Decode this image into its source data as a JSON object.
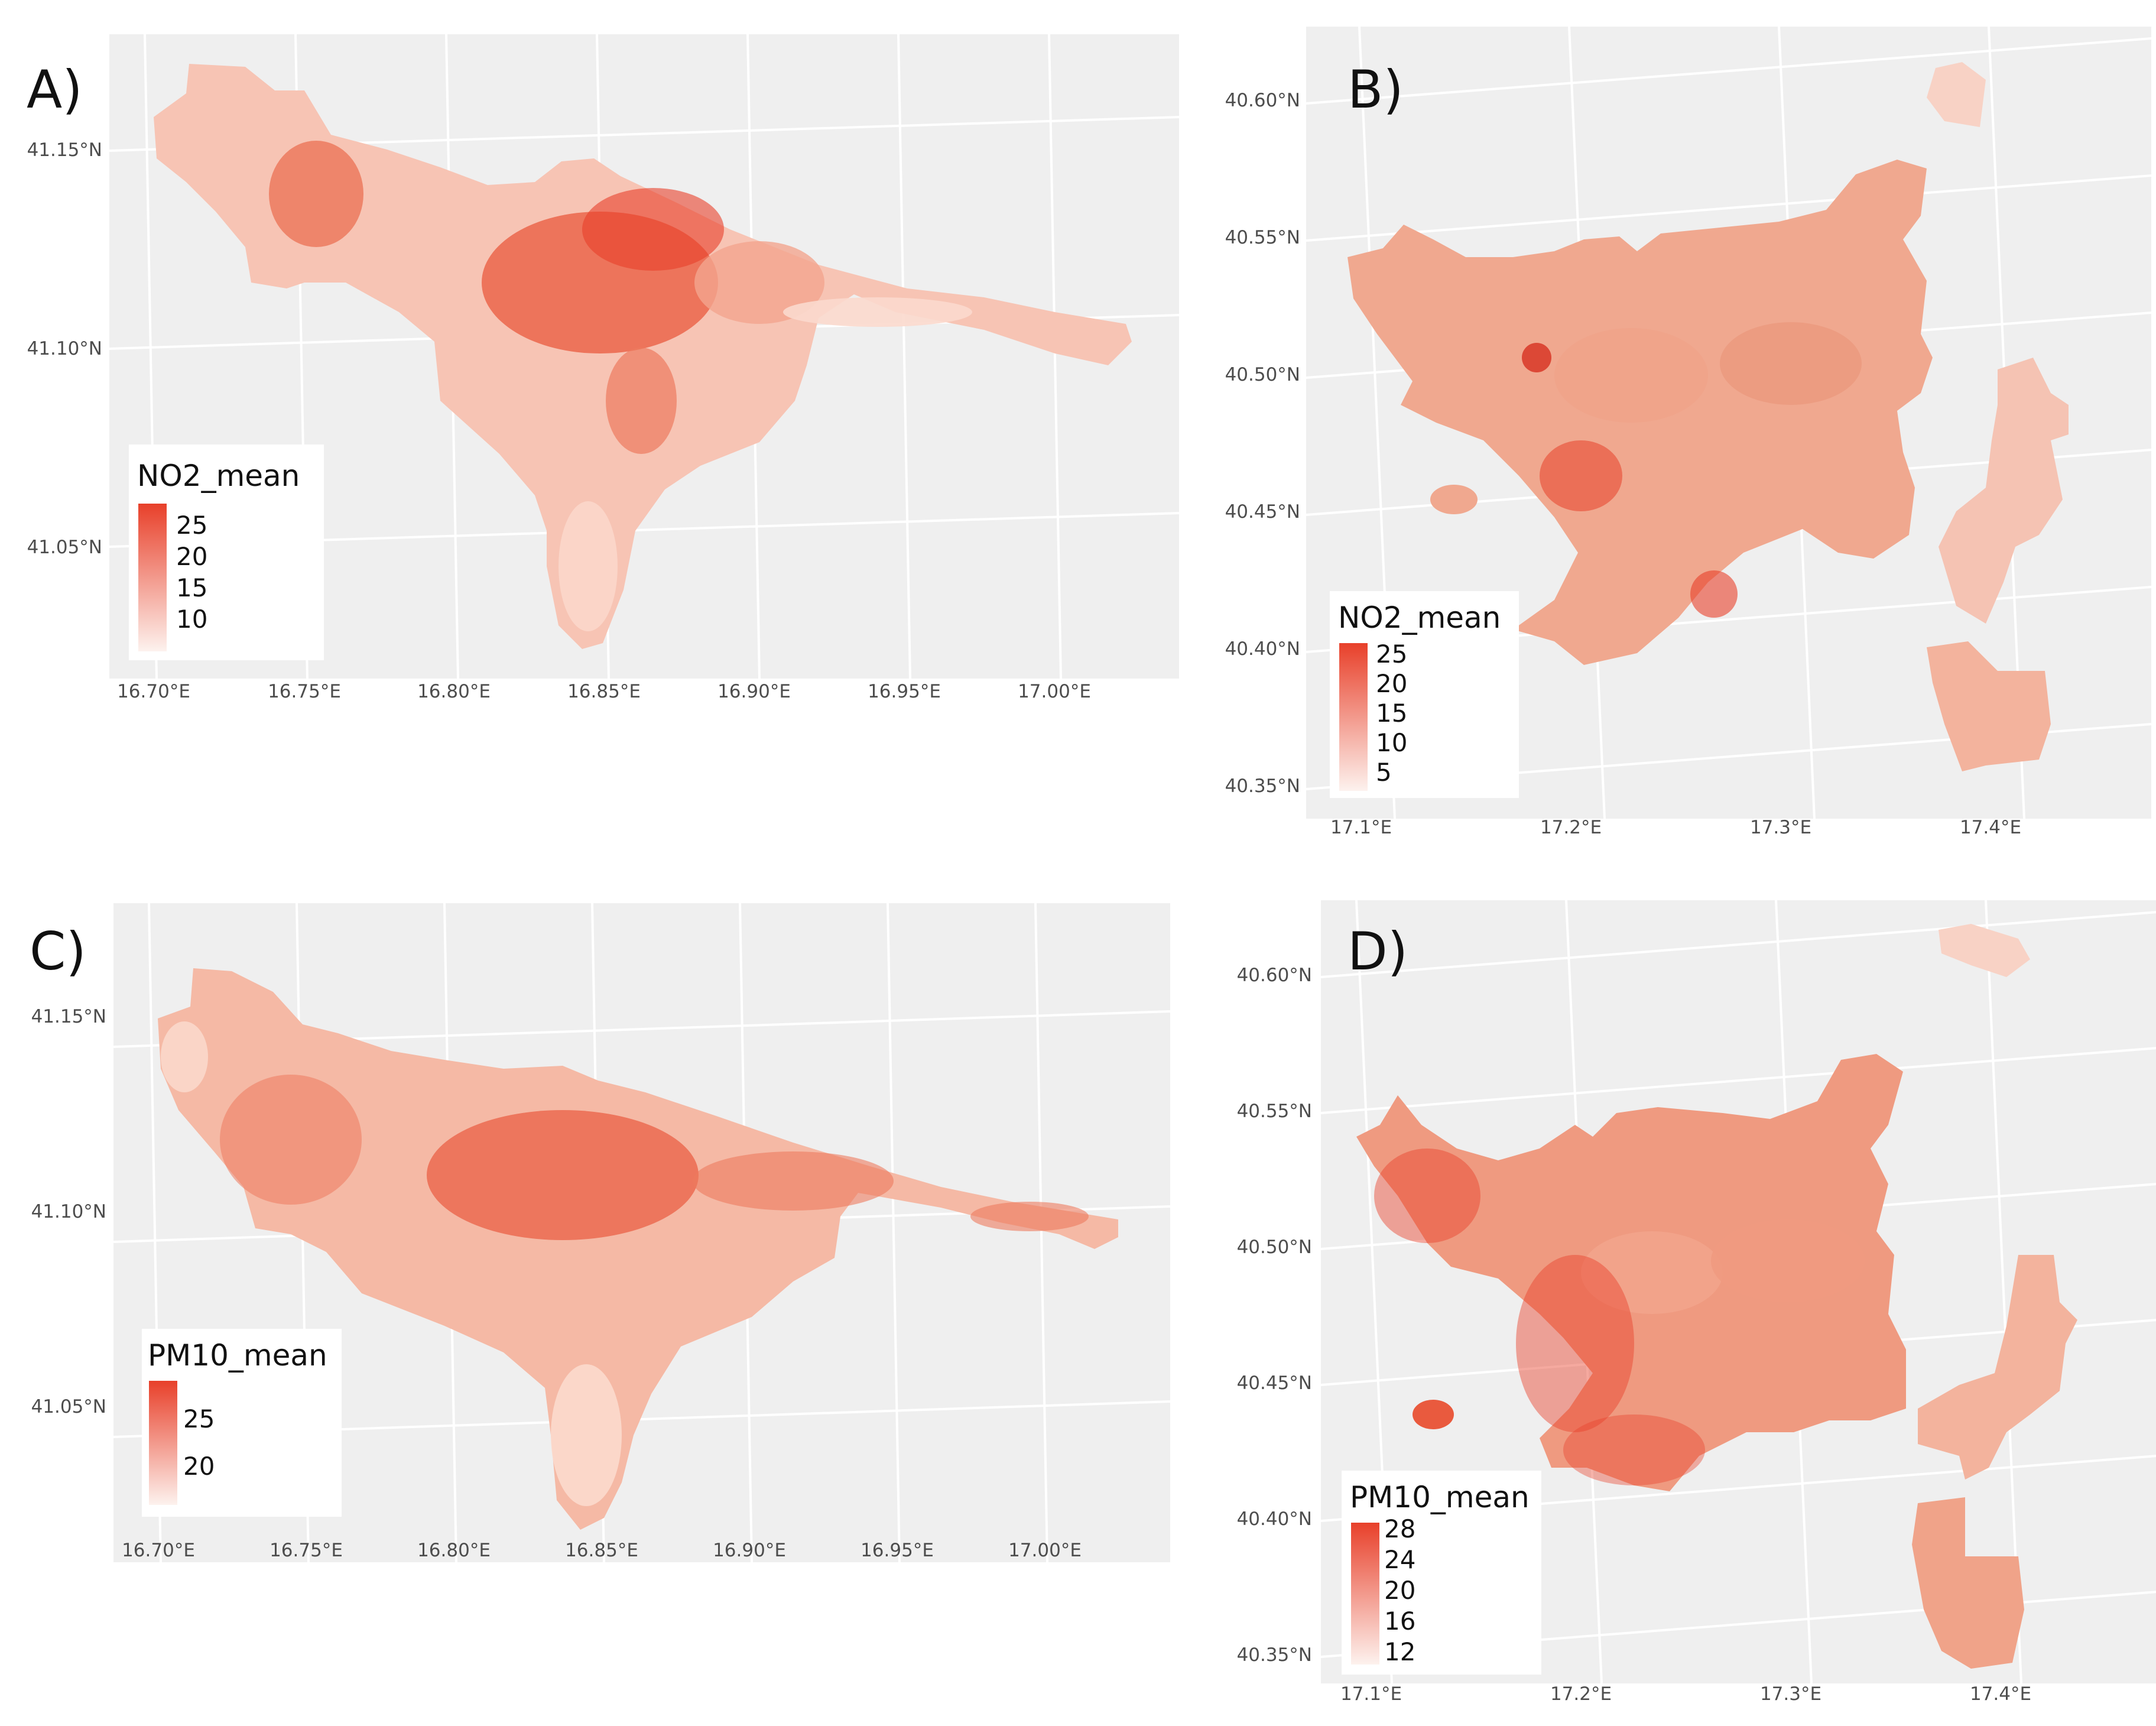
{
  "figure": {
    "colors": {
      "panel_bg": "#efefef",
      "grid": "#ffffff",
      "low": "#fdeee9",
      "high": "#e8402a"
    },
    "panels": [
      {
        "id": "A",
        "label": "A)",
        "pollutant": "NO2",
        "legend_title": "NO2_mean",
        "legend_breaks": [
          "25",
          "20",
          "15",
          "10"
        ],
        "lat_labels": [
          "41.15°N",
          "41.10°N",
          "41.05°N"
        ],
        "lon_labels": [
          "16.70°E",
          "16.75°E",
          "16.80°E",
          "16.85°E",
          "16.90°E",
          "16.95°E",
          "17.00°E"
        ]
      },
      {
        "id": "B",
        "label": "B)",
        "pollutant": "NO2",
        "legend_title": "NO2_mean",
        "legend_breaks": [
          "25",
          "20",
          "15",
          "10",
          "5"
        ],
        "lat_labels": [
          "40.60°N",
          "40.55°N",
          "40.50°N",
          "40.45°N",
          "40.40°N",
          "40.35°N"
        ],
        "lon_labels": [
          "17.1°E",
          "17.2°E",
          "17.3°E",
          "17.4°E"
        ]
      },
      {
        "id": "C",
        "label": "C)",
        "pollutant": "PM10",
        "legend_title": "PM10_mean",
        "legend_breaks": [
          "25",
          "20"
        ],
        "lat_labels": [
          "41.15°N",
          "41.10°N",
          "41.05°N"
        ],
        "lon_labels": [
          "16.70°E",
          "16.75°E",
          "16.80°E",
          "16.85°E",
          "16.90°E",
          "16.95°E",
          "17.00°E"
        ]
      },
      {
        "id": "D",
        "label": "D)",
        "pollutant": "PM10",
        "legend_title": "PM10_mean",
        "legend_breaks": [
          "28",
          "24",
          "20",
          "16",
          "12"
        ],
        "lat_labels": [
          "40.60°N",
          "40.55°N",
          "40.50°N",
          "40.45°N",
          "40.40°N",
          "40.35°N"
        ],
        "lon_labels": [
          "17.1°E",
          "17.2°E",
          "17.3°E",
          "17.4°E"
        ]
      }
    ]
  }
}
